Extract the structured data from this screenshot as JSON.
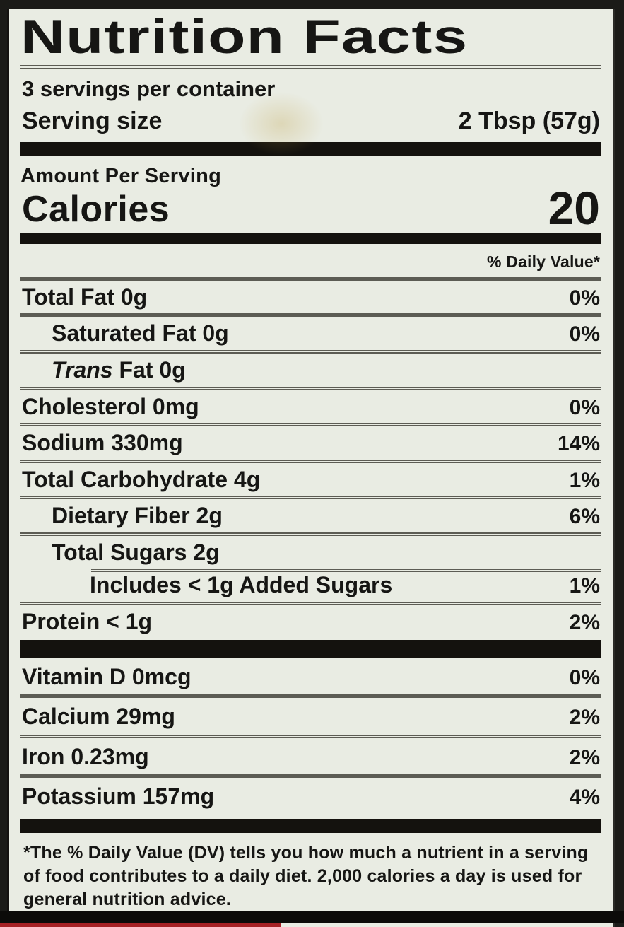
{
  "colors": {
    "paper": "#e9ece3",
    "ink": "#161614",
    "rule": "#5c5c54",
    "bar": "#14120e",
    "red": "#a62125"
  },
  "label": {
    "title": "Nutrition Facts",
    "servings_per_container": "3 servings per container",
    "serving_size_label": "Serving size",
    "serving_size_value": "2 Tbsp (57g)",
    "amount_per_serving": "Amount Per Serving",
    "calories_label": "Calories",
    "calories_value": "20",
    "daily_value_header": "% Daily Value*",
    "nutrients": [
      {
        "name": "Total Fat",
        "amount": "0g",
        "dv": "0%",
        "indent": 0
      },
      {
        "name": "Saturated Fat",
        "amount": "0g",
        "dv": "0%",
        "indent": 1
      },
      {
        "italic_prefix": "Trans",
        "name": "Fat",
        "amount": "0g",
        "dv": "",
        "indent": 1
      },
      {
        "name": "Cholesterol",
        "amount": "0mg",
        "dv": "0%",
        "indent": 0
      },
      {
        "name": "Sodium",
        "amount": "330mg",
        "dv": "14%",
        "indent": 0
      },
      {
        "name": "Total Carbohydrate",
        "amount": "4g",
        "dv": "1%",
        "indent": 0
      },
      {
        "name": "Dietary Fiber",
        "amount": "2g",
        "dv": "6%",
        "indent": 1
      },
      {
        "name": "Total Sugars",
        "amount": "2g",
        "dv": "",
        "indent": 1
      },
      {
        "name": "Includes < 1g Added Sugars",
        "amount": "",
        "dv": "1%",
        "indent": 2,
        "rule_indent": true
      },
      {
        "name": "Protein",
        "amount": "< 1g",
        "dv": "2%",
        "indent": 0
      }
    ],
    "minerals": [
      {
        "name": "Vitamin D",
        "amount": "0mcg",
        "dv": "0%"
      },
      {
        "name": "Calcium",
        "amount": "29mg",
        "dv": "2%"
      },
      {
        "name": "Iron",
        "amount": "0.23mg",
        "dv": "2%"
      },
      {
        "name": "Potassium",
        "amount": "157mg",
        "dv": "4%"
      }
    ],
    "footnote": "*The % Daily Value (DV) tells you how much a nutrient in a serving of food contributes to a daily diet. 2,000 calories a day is used for general nutrition advice."
  }
}
